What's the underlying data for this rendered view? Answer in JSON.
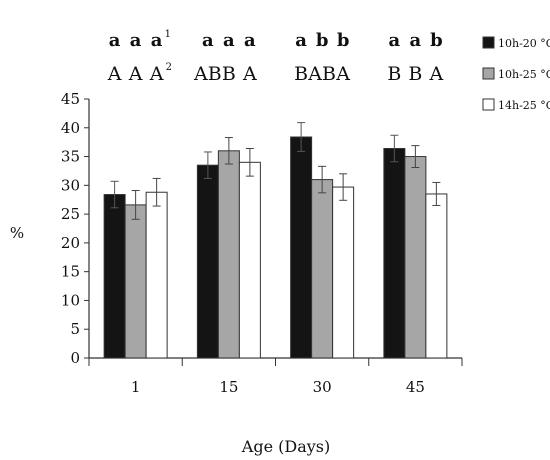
{
  "chart_data": {
    "type": "bar",
    "ylabel": "%",
    "xlabel": "Age (Days)",
    "categories": [
      "1",
      "15",
      "30",
      "45"
    ],
    "ylim": [
      0,
      45
    ],
    "yticks": [
      "0",
      "5",
      "10",
      "15",
      "20",
      "25",
      "30",
      "35",
      "40",
      "45"
    ],
    "error_bars": true,
    "legend_position": "right",
    "series": [
      {
        "name": "10h-20 °C",
        "color": "#141414",
        "values": [
          28.4,
          33.5,
          38.4,
          36.4
        ],
        "errors": [
          2.3,
          2.3,
          2.5,
          2.3
        ],
        "letters_lower": [
          "a",
          "a",
          "a",
          "a"
        ],
        "letters_upper": [
          "A",
          "AB",
          "B",
          "B"
        ]
      },
      {
        "name": "10h-25 °C",
        "color": "#a6a6a6",
        "values": [
          26.6,
          36.0,
          31.0,
          35.0
        ],
        "errors": [
          2.5,
          2.3,
          2.3,
          1.9
        ],
        "letters_lower": [
          "a",
          "a",
          "b",
          "a"
        ],
        "letters_upper": [
          "A",
          "B",
          "AB",
          "B"
        ]
      },
      {
        "name": "14h-25 °C",
        "color": "#ffffff",
        "values": [
          28.8,
          34.0,
          29.7,
          28.5
        ],
        "errors": [
          2.4,
          2.4,
          2.3,
          2.0
        ],
        "letters_lower": [
          "a",
          "a",
          "b",
          "b"
        ],
        "letters_upper": [
          "A",
          "A",
          "A",
          "A"
        ]
      }
    ],
    "superscripts": {
      "lower": "1",
      "upper": "2"
    }
  }
}
